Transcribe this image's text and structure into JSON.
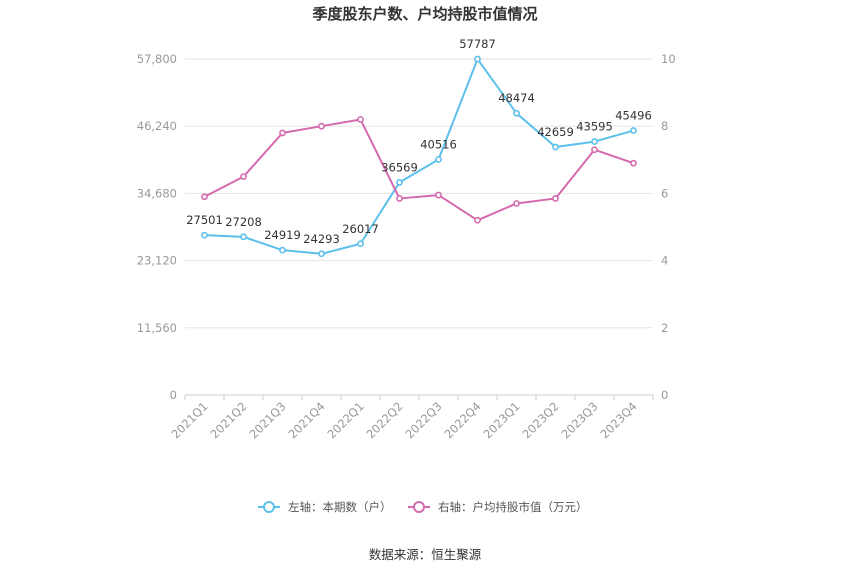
{
  "chart_data": {
    "type": "line",
    "title": "季度股东户数、户均持股市值情况",
    "categories": [
      "2021Q1",
      "2021Q2",
      "2021Q3",
      "2021Q4",
      "2022Q1",
      "2022Q2",
      "2022Q3",
      "2022Q4",
      "2023Q1",
      "2023Q2",
      "2023Q3",
      "2023Q4"
    ],
    "left_axis": {
      "min": 0,
      "max": 57800,
      "ticks": [
        "0",
        "11,560",
        "23,120",
        "34,680",
        "46,240",
        "57,800"
      ]
    },
    "right_axis": {
      "min": 0,
      "max": 10,
      "ticks": [
        "0",
        "2",
        "4",
        "6",
        "8",
        "10"
      ]
    },
    "series": [
      {
        "name": "左轴：本期数（户）",
        "axis": "left",
        "color": "#5bc0eb",
        "values": [
          27501,
          27208,
          24919,
          24293,
          26017,
          36569,
          40516,
          57787,
          48474,
          42659,
          43595,
          45496
        ],
        "labels": [
          "27501",
          "27208",
          "24919",
          "24293",
          "26017",
          "36569",
          "40516",
          "57787",
          "48474",
          "42659",
          "43595",
          "45496"
        ]
      },
      {
        "name": "右轴：户均持股市值（万元）",
        "axis": "right",
        "color": "#d46aae",
        "values": [
          5.9,
          6.5,
          7.8,
          8.0,
          8.2,
          5.85,
          5.95,
          5.2,
          5.7,
          5.85,
          7.3,
          6.9
        ]
      }
    ],
    "grid": true,
    "legend_position": "bottom"
  },
  "footer": {
    "source": "数据来源：恒生聚源"
  }
}
